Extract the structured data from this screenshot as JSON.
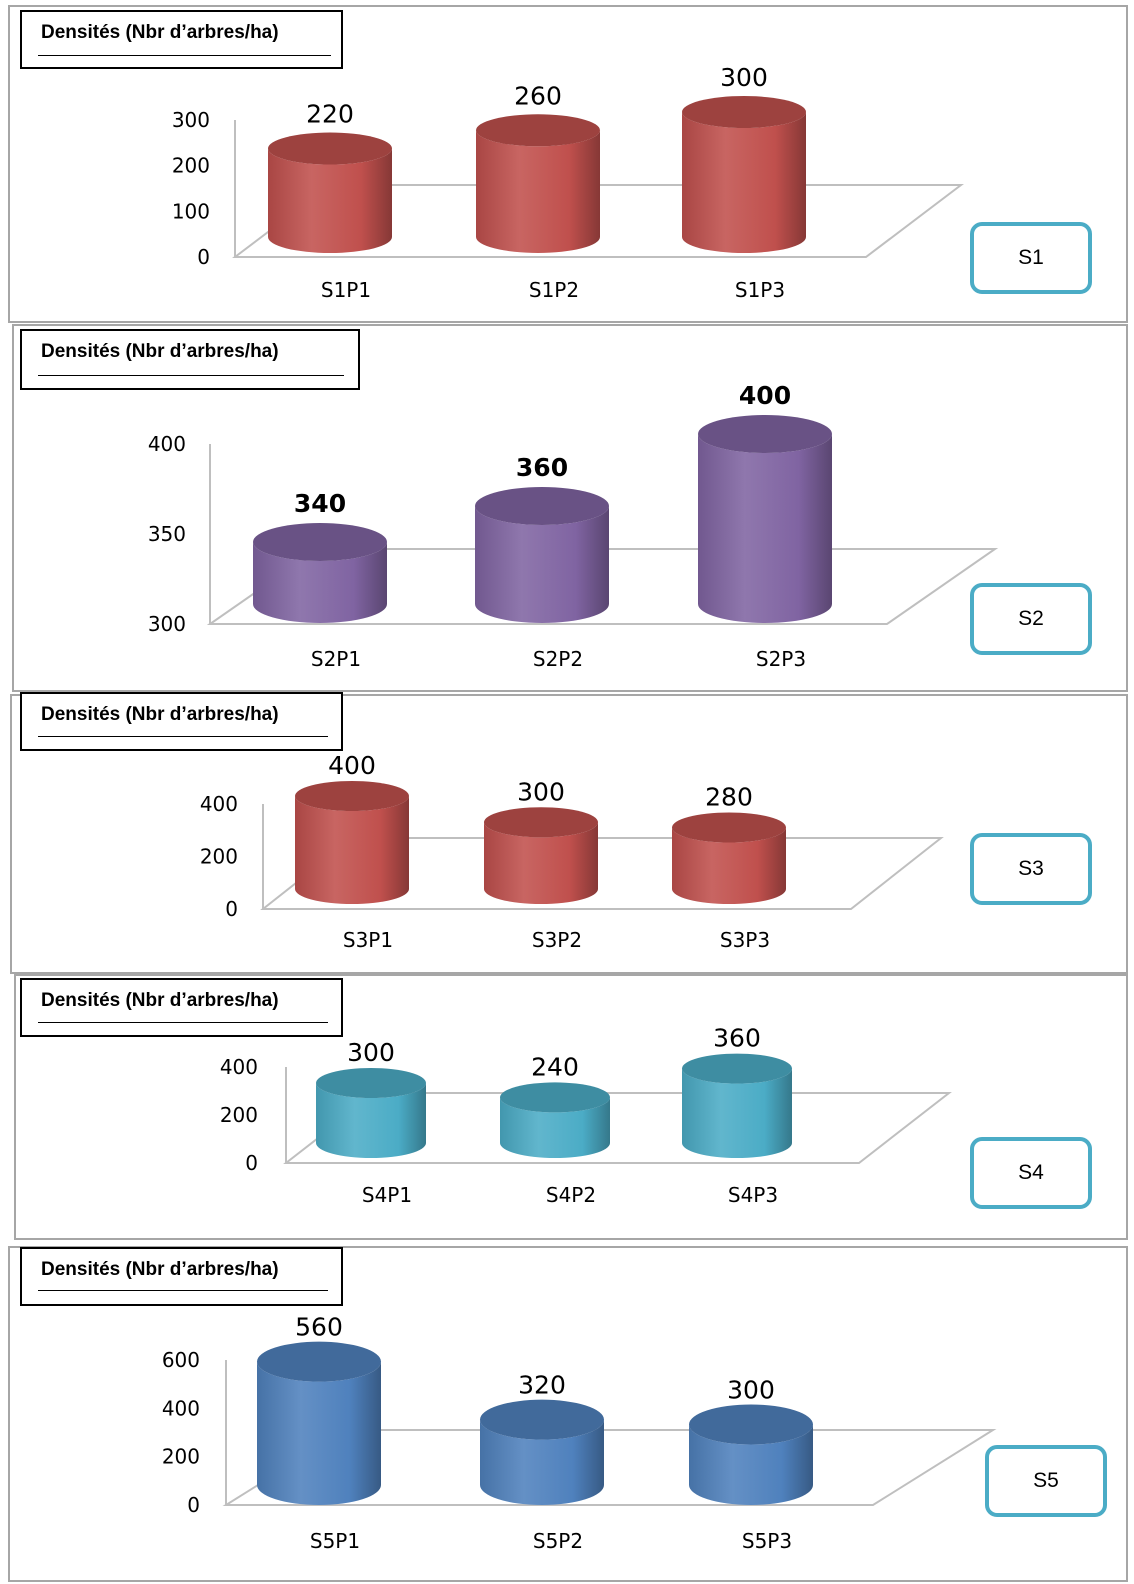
{
  "chart_data": [
    {
      "type": "bar",
      "title": "Densités (Nbr d’arbres/ha)",
      "site_label": "S1",
      "categories": [
        "S1P1",
        "S1P2",
        "S1P3"
      ],
      "values": [
        220,
        260,
        300
      ],
      "ylim": [
        0,
        300
      ],
      "yticks": [
        0,
        100,
        200,
        300
      ],
      "grid": false,
      "legend": "none",
      "color": "#c0504d"
    },
    {
      "type": "bar",
      "title": "Densités (Nbr d’arbres/ha)",
      "site_label": "S2",
      "categories": [
        "S2P1",
        "S2P2",
        "S2P3"
      ],
      "values": [
        340,
        360,
        400
      ],
      "ylim": [
        300,
        400
      ],
      "yticks": [
        300,
        350,
        400
      ],
      "grid": false,
      "legend": "none",
      "color": "#8064a2"
    },
    {
      "type": "bar",
      "title": "Densités (Nbr d’arbres/ha)",
      "site_label": "S3",
      "categories": [
        "S3P1",
        "S3P2",
        "S3P3"
      ],
      "values": [
        400,
        300,
        280
      ],
      "ylim": [
        0,
        400
      ],
      "yticks": [
        0,
        200,
        400
      ],
      "grid": false,
      "legend": "none",
      "color": "#c0504d"
    },
    {
      "type": "bar",
      "title": "Densités (Nbr d’arbres/ha)",
      "site_label": "S4",
      "categories": [
        "S4P1",
        "S4P2",
        "S4P3"
      ],
      "values": [
        300,
        240,
        360
      ],
      "ylim": [
        0,
        400
      ],
      "yticks": [
        0,
        200,
        400
      ],
      "grid": false,
      "legend": "none",
      "color": "#4bacc6"
    },
    {
      "type": "bar",
      "title": "Densités (Nbr d’arbres/ha)",
      "site_label": "S5",
      "categories": [
        "S5P1",
        "S5P2",
        "S5P3"
      ],
      "values": [
        560,
        320,
        300
      ],
      "ylim": [
        0,
        600
      ],
      "yticks": [
        0,
        200,
        400,
        600
      ],
      "grid": false,
      "legend": "none",
      "color": "#4f81bd"
    }
  ]
}
